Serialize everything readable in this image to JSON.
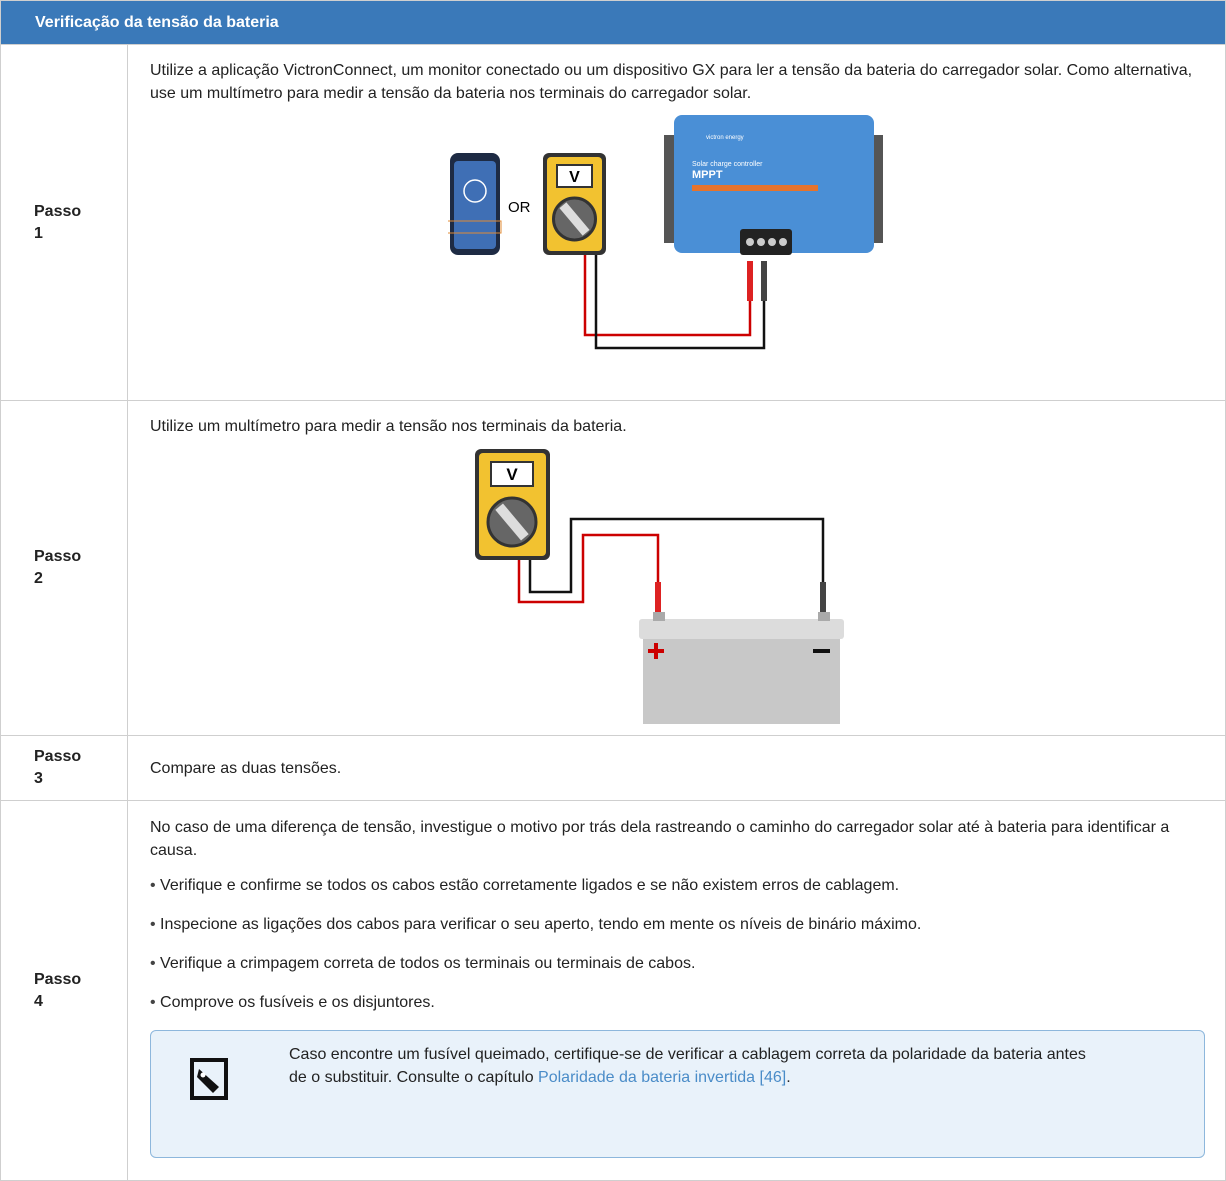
{
  "table": {
    "title": "Verificação da tensão da bateria",
    "rows": [
      {
        "step": "Passo 1",
        "text": "Utilize a aplicação VictronConnect, um monitor conectado ou um dispositivo GX para ler a tensão da bateria do carregador solar. Como alternativa, use um multímetro para medir a tensão da bateria nos terminais do carregador solar.",
        "figure": {
          "or": "OR",
          "meter": "V",
          "brand": "victron energy",
          "product": "Solar charge controller",
          "model": "MPPT"
        }
      },
      {
        "step": "Passo 2",
        "text": "Utilize um multímetro para medir a tensão nos terminais da bateria.",
        "figure": {
          "meter": "V"
        }
      },
      {
        "step": "Passo 3",
        "text": "Compare as duas tensões."
      },
      {
        "step": "Passo 4",
        "text": "No caso de uma diferença de tensão, investigue o motivo por trás dela rastreando o caminho do carregador solar até à bateria para identificar a causa.",
        "bullets": [
          "Verifique e confirme se todos os cabos estão corretamente ligados e se não existem erros de cablagem.",
          "Inspecione as ligações dos cabos para verificar o seu aperto, tendo em mente os níveis de binário máximo.",
          "Verifique a crimpagem correta de todos os terminais ou terminais de cabos.",
          "Comprove os fusíveis e os disjuntores."
        ],
        "note": {
          "text": "Caso encontre um fusível queimado, certifique-se de verificar a cablagem correta da polaridade da bateria antes de o substituir. Consulte o capítulo ",
          "link": "Polaridade da bateria invertida [46]",
          "end": "."
        }
      }
    ]
  }
}
